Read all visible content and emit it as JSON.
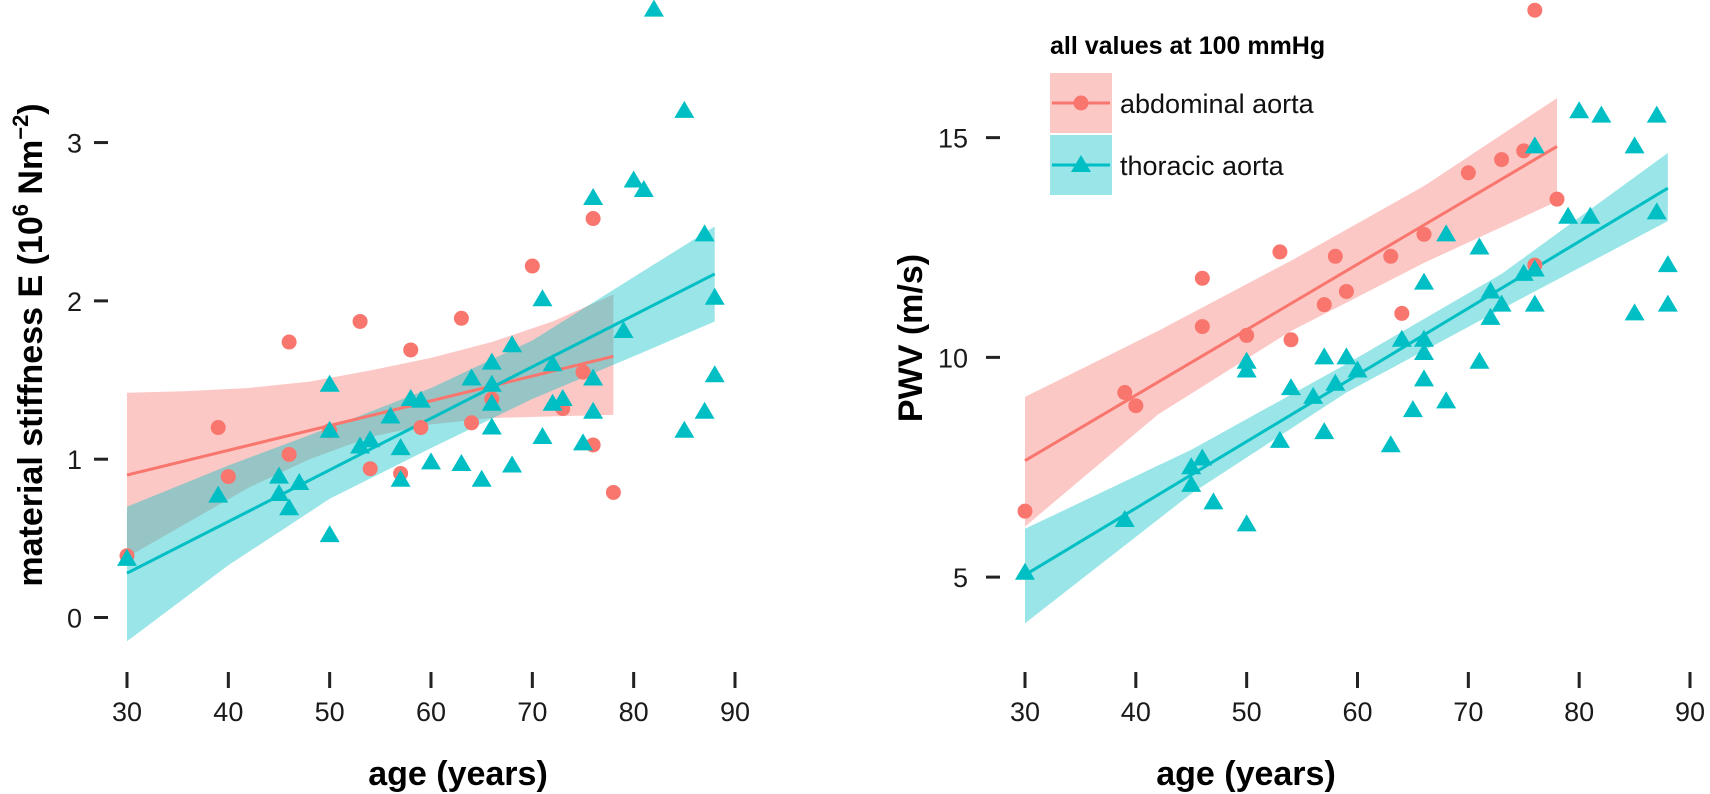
{
  "colors": {
    "abdominal": "#F8766D",
    "thoracic": "#00BFC4",
    "abdominal_band": "#F8766D",
    "thoracic_band": "#00BFC4"
  },
  "legend": {
    "title": "all values at 100 mmHg",
    "items": [
      {
        "label": "abdominal aorta",
        "marker": "circle"
      },
      {
        "label": "thoracic aorta",
        "marker": "triangle"
      }
    ]
  },
  "chart_data": [
    {
      "type": "scatter",
      "xlabel": "age (years)",
      "ylabel": "material stiffness E (10",
      "ylabel_sup": "6",
      "ylabel_unit": " Nm",
      "ylabel_sup2": "−2",
      "ylabel_close": ")",
      "xlim": [
        30,
        90
      ],
      "ylim": [
        -0.3,
        3.85
      ],
      "xticks": [
        30,
        40,
        50,
        60,
        70,
        80,
        90
      ],
      "yticks": [
        0,
        1,
        2,
        3
      ],
      "series": [
        {
          "name": "abdominal aorta",
          "marker": "circle",
          "points": [
            [
              30,
              0.39
            ],
            [
              39,
              1.2
            ],
            [
              40,
              0.89
            ],
            [
              46,
              1.03
            ],
            [
              46,
              1.74
            ],
            [
              50,
              1.18
            ],
            [
              53,
              1.87
            ],
            [
              54,
              0.94
            ],
            [
              57,
              0.91
            ],
            [
              58,
              1.69
            ],
            [
              59,
              1.2
            ],
            [
              63,
              1.89
            ],
            [
              64,
              1.23
            ],
            [
              66,
              1.38
            ],
            [
              70,
              2.22
            ],
            [
              73,
              1.32
            ],
            [
              75,
              1.55
            ],
            [
              76,
              1.09
            ],
            [
              76,
              2.52
            ],
            [
              78,
              0.79
            ]
          ],
          "fit": {
            "x": [
              30,
              78
            ],
            "y": [
              0.9,
              1.65
            ]
          },
          "band": {
            "x": [
              30,
              36,
              42,
              48,
              54,
              60,
              66,
              72,
              78
            ],
            "lower": [
              0.38,
              0.6,
              0.82,
              1.0,
              1.14,
              1.22,
              1.26,
              1.27,
              1.28
            ],
            "upper": [
              1.42,
              1.43,
              1.45,
              1.49,
              1.56,
              1.64,
              1.74,
              1.87,
              2.04
            ]
          }
        },
        {
          "name": "thoracic aorta",
          "marker": "triangle",
          "points": [
            [
              30,
              0.37
            ],
            [
              39,
              0.77
            ],
            [
              45,
              0.89
            ],
            [
              45,
              0.78
            ],
            [
              46,
              0.69
            ],
            [
              47,
              0.85
            ],
            [
              50,
              1.47
            ],
            [
              50,
              1.18
            ],
            [
              50,
              0.52
            ],
            [
              53,
              1.08
            ],
            [
              54,
              1.12
            ],
            [
              56,
              1.27
            ],
            [
              57,
              0.87
            ],
            [
              57,
              1.07
            ],
            [
              58,
              1.38
            ],
            [
              59,
              1.37
            ],
            [
              60,
              0.98
            ],
            [
              63,
              0.97
            ],
            [
              64,
              1.51
            ],
            [
              65,
              0.87
            ],
            [
              66,
              1.61
            ],
            [
              66,
              1.47
            ],
            [
              66,
              1.35
            ],
            [
              66,
              1.2
            ],
            [
              68,
              1.72
            ],
            [
              68,
              0.96
            ],
            [
              71,
              1.14
            ],
            [
              71,
              2.01
            ],
            [
              72,
              1.35
            ],
            [
              72,
              1.6
            ],
            [
              73,
              1.38
            ],
            [
              75,
              1.1
            ],
            [
              76,
              2.65
            ],
            [
              76,
              1.51
            ],
            [
              76,
              1.3
            ],
            [
              79,
              1.81
            ],
            [
              80,
              2.76
            ],
            [
              81,
              2.7
            ],
            [
              82,
              3.84
            ],
            [
              85,
              3.2
            ],
            [
              85,
              1.18
            ],
            [
              87,
              2.42
            ],
            [
              87,
              1.3
            ],
            [
              88,
              2.02
            ],
            [
              88,
              1.53
            ]
          ],
          "fit": {
            "x": [
              30,
              88
            ],
            "y": [
              0.28,
              2.17
            ]
          },
          "band": {
            "x": [
              30,
              40,
              50,
              60,
              70,
              80,
              88
            ],
            "lower": [
              -0.15,
              0.33,
              0.75,
              1.07,
              1.38,
              1.65,
              1.87
            ],
            "upper": [
              0.7,
              0.96,
              1.2,
              1.45,
              1.75,
              2.15,
              2.47
            ]
          }
        }
      ]
    },
    {
      "type": "scatter",
      "xlabel": "age (years)",
      "ylabel": "PWV (m/s)",
      "xlim": [
        30,
        90
      ],
      "ylim": [
        3.0,
        17.95
      ],
      "xticks": [
        30,
        40,
        50,
        60,
        70,
        80,
        90
      ],
      "yticks": [
        5,
        10,
        15
      ],
      "series": [
        {
          "name": "abdominal aorta",
          "marker": "circle",
          "points": [
            [
              30,
              6.5
            ],
            [
              39,
              9.2
            ],
            [
              40,
              8.9
            ],
            [
              46,
              10.7
            ],
            [
              46,
              11.8
            ],
            [
              50,
              10.5
            ],
            [
              53,
              12.4
            ],
            [
              54,
              10.4
            ],
            [
              57,
              11.2
            ],
            [
              58,
              12.3
            ],
            [
              59,
              11.5
            ],
            [
              63,
              12.3
            ],
            [
              64,
              11.0
            ],
            [
              66,
              12.8
            ],
            [
              70,
              14.2
            ],
            [
              73,
              14.5
            ],
            [
              75,
              14.7
            ],
            [
              76,
              12.1
            ],
            [
              76,
              17.9
            ],
            [
              78,
              13.6
            ]
          ],
          "fit": {
            "x": [
              30,
              78
            ],
            "y": [
              7.65,
              14.8
            ]
          },
          "band": {
            "x": [
              30,
              42,
              54,
              66,
              78
            ],
            "lower": [
              6.15,
              8.7,
              10.6,
              12.15,
              13.55
            ],
            "upper": [
              9.1,
              10.6,
              12.2,
              13.9,
              15.9
            ]
          }
        },
        {
          "name": "thoracic aorta",
          "marker": "triangle",
          "points": [
            [
              30,
              5.1
            ],
            [
              39,
              6.3
            ],
            [
              45,
              7.5
            ],
            [
              45,
              7.1
            ],
            [
              46,
              7.7
            ],
            [
              47,
              6.7
            ],
            [
              50,
              9.9
            ],
            [
              50,
              9.7
            ],
            [
              50,
              6.2
            ],
            [
              53,
              8.1
            ],
            [
              54,
              9.3
            ],
            [
              56,
              9.1
            ],
            [
              57,
              10.0
            ],
            [
              57,
              8.3
            ],
            [
              58,
              9.4
            ],
            [
              59,
              10.0
            ],
            [
              60,
              9.7
            ],
            [
              63,
              8.0
            ],
            [
              64,
              10.4
            ],
            [
              65,
              8.8
            ],
            [
              66,
              11.7
            ],
            [
              66,
              10.4
            ],
            [
              66,
              10.1
            ],
            [
              66,
              9.5
            ],
            [
              68,
              12.8
            ],
            [
              68,
              9.0
            ],
            [
              71,
              12.5
            ],
            [
              71,
              9.9
            ],
            [
              72,
              11.5
            ],
            [
              72,
              10.9
            ],
            [
              73,
              11.2
            ],
            [
              75,
              11.9
            ],
            [
              76,
              14.8
            ],
            [
              76,
              12.0
            ],
            [
              76,
              11.2
            ],
            [
              79,
              13.2
            ],
            [
              80,
              15.6
            ],
            [
              81,
              13.2
            ],
            [
              82,
              15.5
            ],
            [
              85,
              14.8
            ],
            [
              85,
              11.0
            ],
            [
              87,
              15.5
            ],
            [
              87,
              13.3
            ],
            [
              88,
              12.1
            ],
            [
              88,
              11.2
            ]
          ],
          "fit": {
            "x": [
              30,
              88
            ],
            "y": [
              5.05,
              13.85
            ]
          },
          "band": {
            "x": [
              30,
              45,
              59,
              73,
              88
            ],
            "lower": [
              3.95,
              6.9,
              9.2,
              11.1,
              13.1
            ],
            "upper": [
              6.1,
              7.9,
              9.85,
              11.9,
              14.65
            ]
          }
        }
      ]
    }
  ]
}
